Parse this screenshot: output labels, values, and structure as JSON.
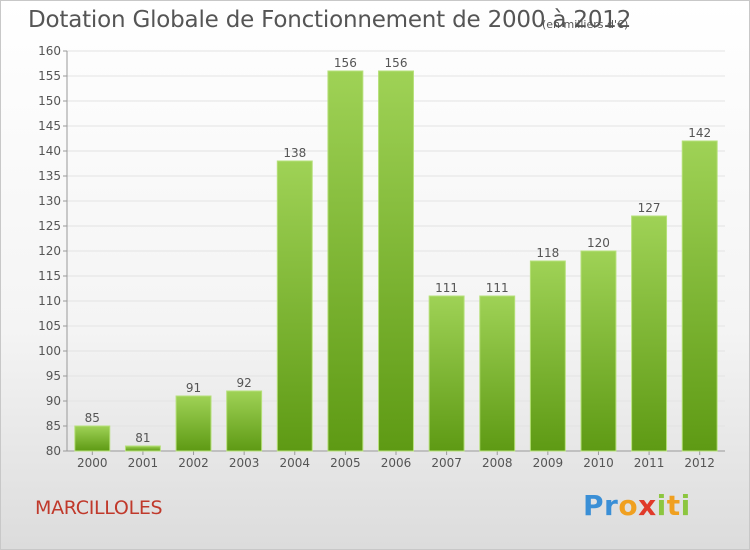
{
  "title": "Dotation Globale de Fonctionnement de 2000 à 2012",
  "subtitle": "(en milliers d'€)",
  "commune": "MARCILLOLES",
  "logo": {
    "letters": [
      {
        "char": "P",
        "color": "#3a8fd6"
      },
      {
        "char": "r",
        "color": "#3a8fd6"
      },
      {
        "char": "o",
        "color": "#f0a020"
      },
      {
        "char": "x",
        "color": "#e03a2a"
      },
      {
        "char": "i",
        "color": "#8cc63f"
      },
      {
        "char": "t",
        "color": "#f0a020"
      },
      {
        "char": "i",
        "color": "#8cc63f"
      }
    ]
  },
  "colors": {
    "bar_top": "#9fd256",
    "bar_bottom": "#5e9a14",
    "bar_edge": "#b6e07a",
    "text": "#555555",
    "grid": "#e3e3e3",
    "commune": "#c0392b"
  },
  "chart_data": {
    "type": "bar",
    "title": "Dotation Globale de Fonctionnement de 2000 à 2012",
    "subtitle": "(en milliers d'€)",
    "categories": [
      "2000",
      "2001",
      "2002",
      "2003",
      "2004",
      "2005",
      "2006",
      "2007",
      "2008",
      "2009",
      "2010",
      "2011",
      "2012"
    ],
    "values": [
      85,
      81,
      91,
      92,
      138,
      156,
      156,
      111,
      111,
      118,
      120,
      127,
      142
    ],
    "ylim": [
      80,
      160
    ],
    "yticks": [
      80,
      85,
      90,
      95,
      100,
      105,
      110,
      115,
      120,
      125,
      130,
      135,
      140,
      145,
      150,
      155,
      160
    ],
    "data_labels": true,
    "grid": true,
    "xlabel": "",
    "ylabel": ""
  }
}
